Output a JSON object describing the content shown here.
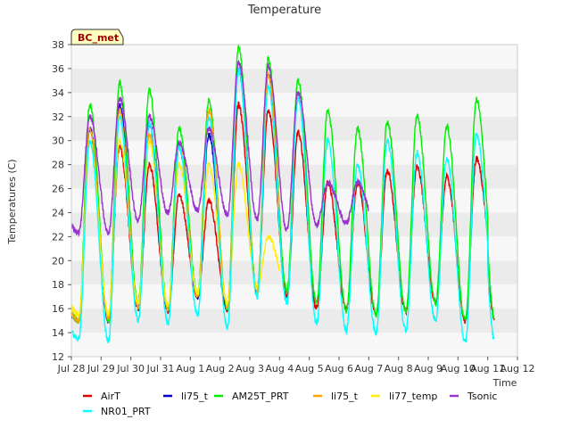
{
  "chart_data": {
    "type": "line",
    "title": "Temperature",
    "xlabel": "Time",
    "ylabel": "Temperatures (C)",
    "ylim": [
      12,
      38
    ],
    "xlim": [
      0,
      15
    ],
    "y_ticks": [
      12,
      14,
      16,
      18,
      20,
      22,
      24,
      26,
      28,
      30,
      32,
      34,
      36,
      38
    ],
    "x_tick_labels": [
      "Jul 28",
      "Jul 29",
      "Jul 30",
      "Jul 31",
      "Aug 1",
      "Aug 2",
      "Aug 3",
      "Aug 4",
      "Aug 5",
      "Aug 6",
      "Aug 7",
      "Aug 8",
      "Aug 9",
      "Aug 10",
      "Aug 11",
      "Aug 12"
    ],
    "grid": "horizontal bands",
    "annotation": "BC_met",
    "legend_position": "bottom",
    "daily_extremes_note": "Values approximate daily min/max read from the figure; x is days since Jul 28.",
    "series": [
      {
        "name": "AirT",
        "color": "#dd0000",
        "min": [
          15.0,
          15.0,
          16.0,
          15.8,
          17.0,
          16.0,
          17.5,
          17.0,
          16.0,
          16.0,
          15.5,
          15.8,
          16.5,
          15.0
        ],
        "max": [
          31.0,
          29.5,
          28.0,
          25.5,
          25.0,
          33.0,
          32.5,
          30.7,
          26.5,
          26.5,
          27.5,
          27.8,
          27.0,
          28.5
        ],
        "end": [
          14.6,
          18.5
        ]
      },
      {
        "name": "li75_t",
        "color": "#0000cc",
        "min": [
          15.0,
          15.0,
          16.0,
          15.8,
          17.0,
          16.0,
          17.5,
          17.0,
          16.0,
          16.0,
          15.5,
          15.8,
          16.5,
          15.0
        ],
        "max": [
          31.0,
          33.0,
          31.5,
          29.5,
          30.5,
          36.0,
          35.5,
          34.0,
          26.5,
          26.5,
          27.5,
          27.8,
          27.0,
          28.5
        ],
        "end": [
          14.6,
          18.5
        ],
        "stop": 7.1
      },
      {
        "name": "AM25T_PRT",
        "color": "#00ee00",
        "min": [
          15.0,
          15.0,
          16.5,
          16.0,
          17.2,
          16.0,
          17.5,
          17.5,
          16.5,
          15.8,
          15.5,
          15.8,
          16.5,
          15.0
        ],
        "max": [
          33.0,
          34.8,
          34.2,
          31.0,
          33.3,
          37.8,
          36.8,
          35.0,
          32.5,
          31.0,
          31.6,
          32.0,
          31.2,
          33.5
        ],
        "end": [
          14.6,
          18.5
        ]
      },
      {
        "name": "li75_t",
        "color": "#ffa500",
        "min": [
          15.0,
          15.2,
          16.0,
          16.0,
          17.0,
          16.2,
          17.5,
          17.5,
          16.5,
          16.0,
          15.5,
          15.8,
          16.5,
          15.0
        ],
        "max": [
          31.0,
          32.5,
          30.5,
          29.5,
          32.5,
          36.0,
          35.5,
          34.0,
          19.5,
          22.0,
          22.0,
          22.0,
          22.0,
          22.0
        ],
        "end": [
          14.6,
          18.5
        ],
        "stop": 7.0
      },
      {
        "name": "li77_temp",
        "color": "#ffee00",
        "min": [
          15.5,
          15.5,
          16.5,
          16.3,
          17.3,
          16.5,
          17.8,
          17.8,
          17.0,
          16.5,
          15.8,
          16.0,
          16.8,
          15.2
        ],
        "max": [
          30.0,
          30.0,
          30.0,
          28.0,
          28.0,
          28.0,
          22.0,
          20.0,
          19.0,
          21.0,
          22.0,
          22.0,
          22.0,
          22.0
        ],
        "end": [
          14.8,
          18.8
        ],
        "stop": 7.0
      },
      {
        "name": "NR01_PRT",
        "color": "#00ffff",
        "min": [
          13.5,
          13.3,
          15.0,
          14.8,
          15.5,
          14.5,
          17.0,
          16.5,
          14.8,
          14.2,
          14.0,
          14.2,
          15.0,
          13.2
        ],
        "max": [
          30.0,
          32.0,
          31.5,
          29.5,
          32.0,
          36.0,
          34.5,
          33.5,
          30.0,
          28.0,
          30.0,
          29.0,
          28.5,
          30.5
        ],
        "end": [
          13.2,
          16.8
        ]
      },
      {
        "name": "Tsonic",
        "color": "#9933cc",
        "min": [
          22.3,
          22.3,
          23.3,
          24.0,
          24.2,
          23.8,
          23.5,
          22.5,
          23.0,
          23.2,
          23.0,
          23.0,
          23.0,
          23.0
        ],
        "max": [
          32.0,
          33.5,
          32.0,
          29.8,
          31.0,
          36.5,
          36.2,
          34.0,
          26.5,
          26.5,
          26.5,
          26.5,
          26.5,
          26.5
        ],
        "stop": 10.0
      }
    ]
  },
  "legend": [
    {
      "label": "AirT",
      "color": "#dd0000"
    },
    {
      "label": "li75_t",
      "color": "#0000cc"
    },
    {
      "label": "AM25T_PRT",
      "color": "#00ee00"
    },
    {
      "label": "li75_t",
      "color": "#ffa500"
    },
    {
      "label": "li77_temp",
      "color": "#ffee00"
    },
    {
      "label": "Tsonic",
      "color": "#9933cc"
    },
    {
      "label": "NR01_PRT",
      "color": "#00ffff"
    }
  ]
}
